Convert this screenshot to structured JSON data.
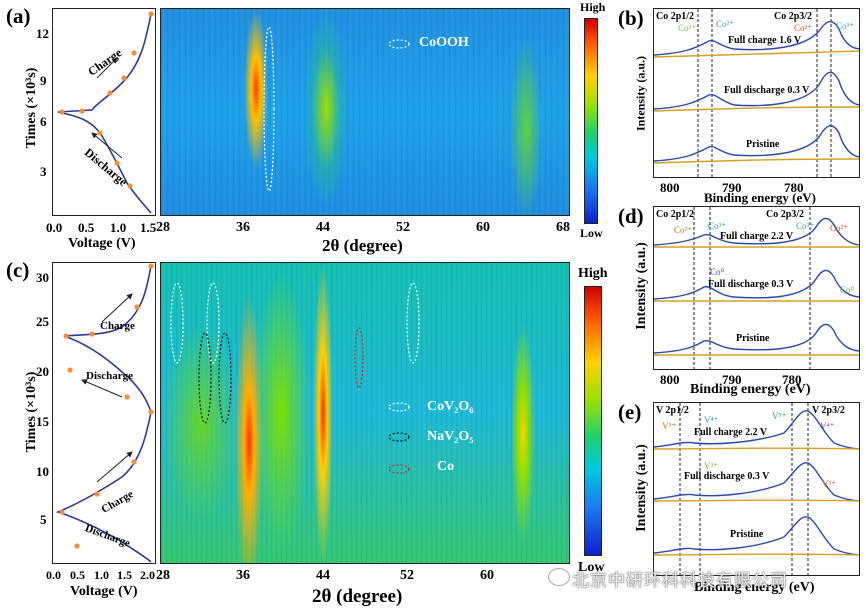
{
  "panels": {
    "a": {
      "label": "(a)",
      "y_label": "Times (×10³s)",
      "y_ticks": [
        "12",
        "9",
        "6",
        "3"
      ],
      "x_label": "Voltage (V)",
      "x_ticks": [
        "0.0",
        "0.5",
        "1.0",
        "1.5"
      ],
      "charge_label": "Charge",
      "discharge_label": "Discharge",
      "heatmap_x_ticks": [
        "28",
        "36",
        "44",
        "52",
        "60",
        "68"
      ],
      "heatmap_x_label": "2θ (degree)",
      "legend": "CoOOH"
    },
    "b": {
      "label": "(b)",
      "y_label": "Intensity (a.u.)",
      "x_label": "Binding energy (eV)",
      "x_ticks": [
        "800",
        "790",
        "780"
      ],
      "region_left": "Co 2p1/2",
      "region_right": "Co 2p3/2",
      "curves": [
        "Full charge 1.6 V",
        "Full discharge 0.3 V",
        "Pristine"
      ],
      "species": [
        "Co³⁺",
        "Co²⁺",
        "Co²⁺",
        "Co³⁺"
      ]
    },
    "c": {
      "label": "(c)",
      "y_label": "Times (×10³s)",
      "y_ticks": [
        "30",
        "25",
        "20",
        "15",
        "10",
        "5"
      ],
      "x_label": "Voltage (V)",
      "x_ticks": [
        "0.0",
        "0.5",
        "1.0",
        "1.5",
        "2.0"
      ],
      "charge_label": "Charge",
      "discharge_label": "Discharge",
      "heatmap_x_ticks": [
        "28",
        "36",
        "44",
        "52",
        "60"
      ],
      "heatmap_x_label": "2θ (degree)",
      "legend": [
        "CoV₂O₆",
        "NaV₂O₅",
        "Co"
      ]
    },
    "d": {
      "label": "(d)",
      "y_label": "Intensity (a.u.)",
      "x_label": "Binding energy (eV)",
      "x_ticks": [
        "800",
        "790",
        "780"
      ],
      "region_left": "Co 2p1/2",
      "region_right": "Co 2p3/2",
      "curves": [
        "Full charge 2.2 V",
        "Full discharge 0.3 V",
        "Pristine"
      ],
      "species": [
        "Co²⁺",
        "Co³⁺",
        "Co³⁺",
        "Co²⁺",
        "Co⁰",
        "Co⁰"
      ]
    },
    "e": {
      "label": "(e)",
      "y_label": "Intensity (a.u.)",
      "x_label": "Binding energy (eV)",
      "region_left": "V 2p1/2",
      "region_right": "V 2p3/2",
      "curves": [
        "Full charge 2.2 V",
        "Full discharge 0.3 V",
        "Pristine"
      ],
      "species": [
        "V⁵⁺",
        "V⁴⁺",
        "V⁵⁺",
        "V⁴⁺",
        "V³⁺",
        "V³⁺"
      ]
    }
  },
  "colorbar": {
    "high": "High",
    "low": "Low"
  },
  "watermark": "北京中研环科科技有限公司"
}
